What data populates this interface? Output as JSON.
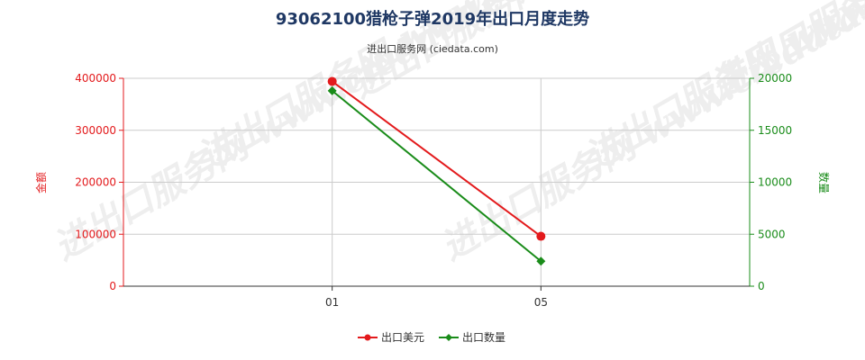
{
  "chart_data": {
    "type": "line",
    "title": "93062100猎枪子弹2019年出口月度走势",
    "subtitle": "进出口服务网 (ciedata.com)",
    "watermark": "进出口服务网 www.ciedata.com",
    "x_categories": [
      "01",
      "05"
    ],
    "y_left": {
      "label": "金额",
      "min": 0,
      "max": 400000,
      "ticks": [
        0,
        100000,
        200000,
        300000,
        400000
      ],
      "color": "#e31a1c"
    },
    "y_right": {
      "label": "数量",
      "min": 0,
      "max": 20000,
      "ticks": [
        0,
        5000,
        10000,
        15000,
        20000
      ],
      "color": "#1a8c1a"
    },
    "grid": true,
    "legend_position": "bottom-center",
    "series": [
      {
        "name": "出口美元",
        "axis": "left",
        "color": "#e31a1c",
        "marker": "circle",
        "points": [
          {
            "x": "01",
            "y": 394000
          },
          {
            "x": "05",
            "y": 96000
          }
        ]
      },
      {
        "name": "出口数量",
        "axis": "right",
        "color": "#1a8c1a",
        "marker": "diamond",
        "points": [
          {
            "x": "01",
            "y": 18800
          },
          {
            "x": "05",
            "y": 2400
          }
        ]
      }
    ]
  }
}
